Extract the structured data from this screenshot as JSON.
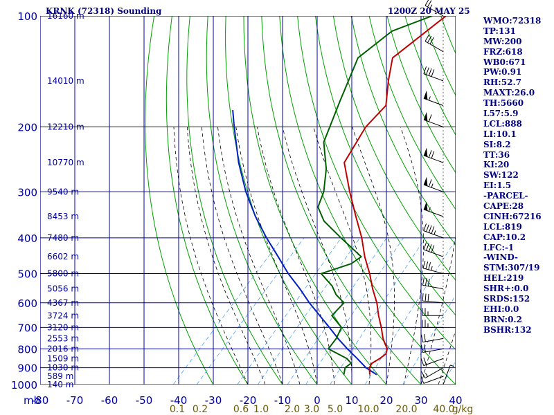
{
  "chart_data": {
    "type": "skew-t sounding",
    "title_left": "KRNK (72318) Sounding",
    "title_right": "1200Z 20 MAY 25",
    "pressure_unit_label": "mb",
    "mixing_ratio_unit_label": "g/kg",
    "pressure_ticks": [
      100,
      200,
      300,
      400,
      500,
      600,
      700,
      800,
      900,
      1000
    ],
    "pressure_range_mb": [
      1000,
      100
    ],
    "temperature_ticks": [
      -80,
      -70,
      -60,
      -50,
      -40,
      -30,
      -20,
      -10,
      0,
      10,
      20,
      30,
      40
    ],
    "temperature_range_c": [
      -80,
      40
    ],
    "mixing_ratio_labels": [
      "0.1",
      "0.2",
      "0.6",
      "1.0",
      "2.0",
      "3.0",
      "5.0",
      "10.0",
      "20.0",
      "40.0"
    ],
    "height_labels": [
      {
        "p": 100,
        "text": "16160 m"
      },
      {
        "p": 150,
        "text": "14010 m"
      },
      {
        "p": 200,
        "text": "12210 m"
      },
      {
        "p": 250,
        "text": "10770 m"
      },
      {
        "p": 300,
        "text": "9540 m"
      },
      {
        "p": 350,
        "text": "8453 m"
      },
      {
        "p": 400,
        "text": "7480 m"
      },
      {
        "p": 450,
        "text": "6602 m"
      },
      {
        "p": 500,
        "text": "5800 m"
      },
      {
        "p": 550,
        "text": "5056 m"
      },
      {
        "p": 600,
        "text": "4367 m"
      },
      {
        "p": 650,
        "text": "3724 m"
      },
      {
        "p": 700,
        "text": "3120 m"
      },
      {
        "p": 750,
        "text": "2553 m"
      },
      {
        "p": 800,
        "text": "2016 m"
      },
      {
        "p": 850,
        "text": "1509 m"
      },
      {
        "p": 900,
        "text": "1030 m"
      },
      {
        "p": 950,
        "text": "589 m"
      },
      {
        "p": 1000,
        "text": "140 m"
      }
    ],
    "temperature_profile": [
      [
        940,
        12.5
      ],
      [
        900,
        10.5
      ],
      [
        875,
        10.0
      ],
      [
        850,
        11.0
      ],
      [
        825,
        11.5
      ],
      [
        800,
        10.5
      ],
      [
        775,
        8.5
      ],
      [
        750,
        6.5
      ],
      [
        700,
        3.0
      ],
      [
        650,
        -1.0
      ],
      [
        600,
        -5.0
      ],
      [
        550,
        -10.0
      ],
      [
        500,
        -15.0
      ],
      [
        450,
        -21.0
      ],
      [
        400,
        -27.0
      ],
      [
        350,
        -34.5
      ],
      [
        300,
        -43.0
      ],
      [
        250,
        -52.5
      ],
      [
        200,
        -56.0
      ],
      [
        175,
        -56.0
      ],
      [
        150,
        -62.0
      ],
      [
        130,
        -67.0
      ],
      [
        100,
        -63.0
      ]
    ],
    "dewpoint_profile": [
      [
        940,
        5.0
      ],
      [
        900,
        3.5
      ],
      [
        875,
        4.0
      ],
      [
        860,
        2.5
      ],
      [
        850,
        1.5
      ],
      [
        800,
        -6.5
      ],
      [
        750,
        -7.0
      ],
      [
        700,
        -8.5
      ],
      [
        650,
        -14.5
      ],
      [
        600,
        -14.5
      ],
      [
        570,
        -19.0
      ],
      [
        540,
        -22.5
      ],
      [
        500,
        -29.0
      ],
      [
        470,
        -23.0
      ],
      [
        450,
        -22.0
      ],
      [
        400,
        -33.0
      ],
      [
        360,
        -42.5
      ],
      [
        330,
        -48.0
      ],
      [
        300,
        -50.5
      ],
      [
        260,
        -56.0
      ],
      [
        220,
        -64.0
      ],
      [
        170,
        -70.5
      ],
      [
        130,
        -77.0
      ],
      [
        110,
        -74.5
      ],
      [
        100,
        -67.0
      ]
    ],
    "parcel_path": [
      [
        940,
        14.5
      ],
      [
        900,
        9.5
      ],
      [
        850,
        4.5
      ],
      [
        800,
        -1.0
      ],
      [
        750,
        -6.5
      ],
      [
        700,
        -12.0
      ],
      [
        650,
        -18.0
      ],
      [
        600,
        -24.5
      ],
      [
        550,
        -31.0
      ],
      [
        500,
        -38.5
      ],
      [
        450,
        -46.0
      ],
      [
        400,
        -54.5
      ],
      [
        350,
        -63.5
      ],
      [
        300,
        -73.0
      ],
      [
        250,
        -83.0
      ],
      [
        200,
        -94.0
      ],
      [
        180,
        -99.0
      ]
    ],
    "wind_profile": [
      [
        1000,
        20,
        5
      ],
      [
        950,
        250,
        10
      ],
      [
        900,
        240,
        15
      ],
      [
        850,
        250,
        20
      ],
      [
        800,
        260,
        20
      ],
      [
        750,
        260,
        20
      ],
      [
        700,
        270,
        25
      ],
      [
        650,
        270,
        25
      ],
      [
        600,
        275,
        30
      ],
      [
        550,
        280,
        30
      ],
      [
        500,
        285,
        35
      ],
      [
        450,
        290,
        40
      ],
      [
        400,
        290,
        45
      ],
      [
        350,
        290,
        55
      ],
      [
        300,
        290,
        65
      ],
      [
        250,
        290,
        70
      ],
      [
        200,
        290,
        60
      ],
      [
        175,
        290,
        55
      ],
      [
        150,
        290,
        40
      ],
      [
        125,
        300,
        30
      ],
      [
        100,
        300,
        25
      ]
    ],
    "indices": [
      "WMO:72318",
      "TP:131",
      "MW:200",
      "FRZ:618",
      "WB0:671",
      "PW:0.91",
      "RH:52.7",
      "MAXT:26.0",
      "TH:5660",
      "L57:5.9",
      "LCL:888",
      "LI:10.1",
      "SI:8.2",
      "TT:36",
      "KI:20",
      "SW:122",
      "EI:1.5",
      "-PARCEL-",
      "CAPE:28",
      "CINH:67216",
      "LCL:819",
      "CAP:10.2",
      "LFC:-1",
      "-WIND-",
      "STM:307/19",
      "HEL:219",
      "SHR+:0.0",
      "SRDS:152",
      "EHI:0.0",
      "BRN:0.2",
      "BSHR:132"
    ],
    "colors": {
      "grid": "#0000a0",
      "dry_adiabat": "#00a000",
      "moist_adiabat": "#000000",
      "mixing_ratio": "#4aa0ff",
      "temperature": "#c00000",
      "dewpoint": "#006000",
      "parcel": "#0020c0",
      "label": "#000080",
      "mixing_label": "#6a5a00"
    }
  }
}
